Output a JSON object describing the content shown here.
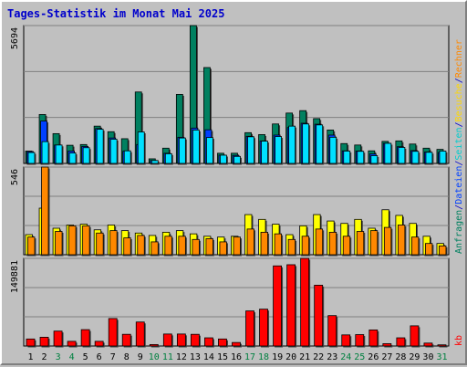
{
  "title": "Tages-Statistik im Monat Mai 2025",
  "panel_max_labels": [
    "5694",
    "546",
    "149881"
  ],
  "legend": {
    "top": [
      {
        "text": "Anfragen",
        "color": "#008060"
      },
      {
        "text": "/",
        "color": "#0000cc"
      },
      {
        "text": "Dateien",
        "color": "#0040ff"
      },
      {
        "text": "/",
        "color": "#0000cc"
      },
      {
        "text": "Seiten",
        "color": "#00cccc"
      },
      {
        "text": "/",
        "color": "#0000cc"
      },
      {
        "text": "Besuche",
        "color": "#ffd800"
      },
      {
        "text": "/",
        "color": "#0000cc"
      },
      {
        "text": "Rechner",
        "color": "#ff8800"
      }
    ],
    "bottom": [
      {
        "text": "kb",
        "color": "#ff0000"
      }
    ]
  },
  "colors": {
    "requests": "#008060",
    "files": "#0040ff",
    "pages": "#00e0ff",
    "visits": "#ffff00",
    "sites": "#ff8800",
    "kbytes": "#ff0000",
    "weekday_label": "#000000",
    "weekend_label": "#008040",
    "panel_bg": "#c0c0c0",
    "grid": "#808080"
  },
  "chart_data": [
    {
      "type": "bar",
      "title": "",
      "ylim": [
        0,
        5694
      ],
      "categories": [
        "1",
        "2",
        "3",
        "4",
        "5",
        "6",
        "7",
        "8",
        "9",
        "10",
        "11",
        "12",
        "13",
        "14",
        "15",
        "16",
        "17",
        "18",
        "19",
        "20",
        "21",
        "22",
        "23",
        "24",
        "25",
        "26",
        "27",
        "28",
        "29",
        "30",
        "31"
      ],
      "weekend_days": [
        "3",
        "4",
        "10",
        "11",
        "17",
        "18",
        "24",
        "25",
        "31"
      ],
      "series": [
        {
          "name": "Anfragen",
          "values": [
            510,
            2020,
            1230,
            750,
            780,
            1540,
            1310,
            1020,
            2950,
            190,
            630,
            2850,
            5694,
            3960,
            420,
            420,
            1270,
            1190,
            1630,
            2080,
            2180,
            1850,
            1380,
            820,
            760,
            520,
            910,
            930,
            800,
            630,
            580
          ]
        },
        {
          "name": "Dateien",
          "values": [
            490,
            1750,
            760,
            510,
            700,
            1440,
            1050,
            500,
            780,
            120,
            420,
            1080,
            1460,
            1390,
            340,
            330,
            1120,
            930,
            1170,
            1480,
            1660,
            1620,
            1170,
            520,
            510,
            390,
            830,
            690,
            530,
            470,
            450
          ]
        },
        {
          "name": "Seiten",
          "values": [
            450,
            900,
            760,
            430,
            650,
            1410,
            1000,
            520,
            1300,
            120,
            400,
            1050,
            1380,
            1070,
            340,
            290,
            1100,
            920,
            1110,
            1540,
            1630,
            1590,
            1080,
            510,
            500,
            320,
            830,
            660,
            500,
            460,
            510
          ]
        }
      ]
    },
    {
      "type": "bar",
      "title": "",
      "ylim": [
        0,
        546
      ],
      "categories": [
        "1",
        "2",
        "3",
        "4",
        "5",
        "6",
        "7",
        "8",
        "9",
        "10",
        "11",
        "12",
        "13",
        "14",
        "15",
        "16",
        "17",
        "18",
        "19",
        "20",
        "21",
        "22",
        "23",
        "24",
        "25",
        "26",
        "27",
        "28",
        "29",
        "30",
        "31"
      ],
      "series": [
        {
          "name": "Besuche",
          "values": [
            125,
            290,
            165,
            185,
            190,
            155,
            185,
            150,
            135,
            120,
            140,
            150,
            130,
            115,
            110,
            115,
            250,
            220,
            190,
            125,
            180,
            250,
            210,
            195,
            220,
            165,
            280,
            245,
            195,
            115,
            70
          ]
        },
        {
          "name": "Rechner",
          "values": [
            110,
            546,
            145,
            180,
            180,
            135,
            150,
            105,
            120,
            80,
            115,
            115,
            95,
            100,
            80,
            110,
            160,
            140,
            130,
            95,
            115,
            160,
            140,
            115,
            145,
            150,
            170,
            185,
            110,
            70,
            55
          ]
        }
      ]
    },
    {
      "type": "bar",
      "title": "",
      "ylim": [
        0,
        149881
      ],
      "categories": [
        "1",
        "2",
        "3",
        "4",
        "5",
        "6",
        "7",
        "8",
        "9",
        "10",
        "11",
        "12",
        "13",
        "14",
        "15",
        "16",
        "17",
        "18",
        "19",
        "20",
        "21",
        "22",
        "23",
        "24",
        "25",
        "26",
        "27",
        "28",
        "29",
        "30",
        "31"
      ],
      "series": [
        {
          "name": "kb",
          "values": [
            12000,
            15000,
            25500,
            8000,
            28000,
            8000,
            47000,
            20000,
            41000,
            2500,
            20500,
            20500,
            20000,
            14000,
            12000,
            6000,
            60000,
            63000,
            137000,
            139000,
            149881,
            104000,
            52000,
            19000,
            19500,
            27500,
            4000,
            14000,
            34500,
            5000,
            2000
          ]
        }
      ]
    }
  ]
}
